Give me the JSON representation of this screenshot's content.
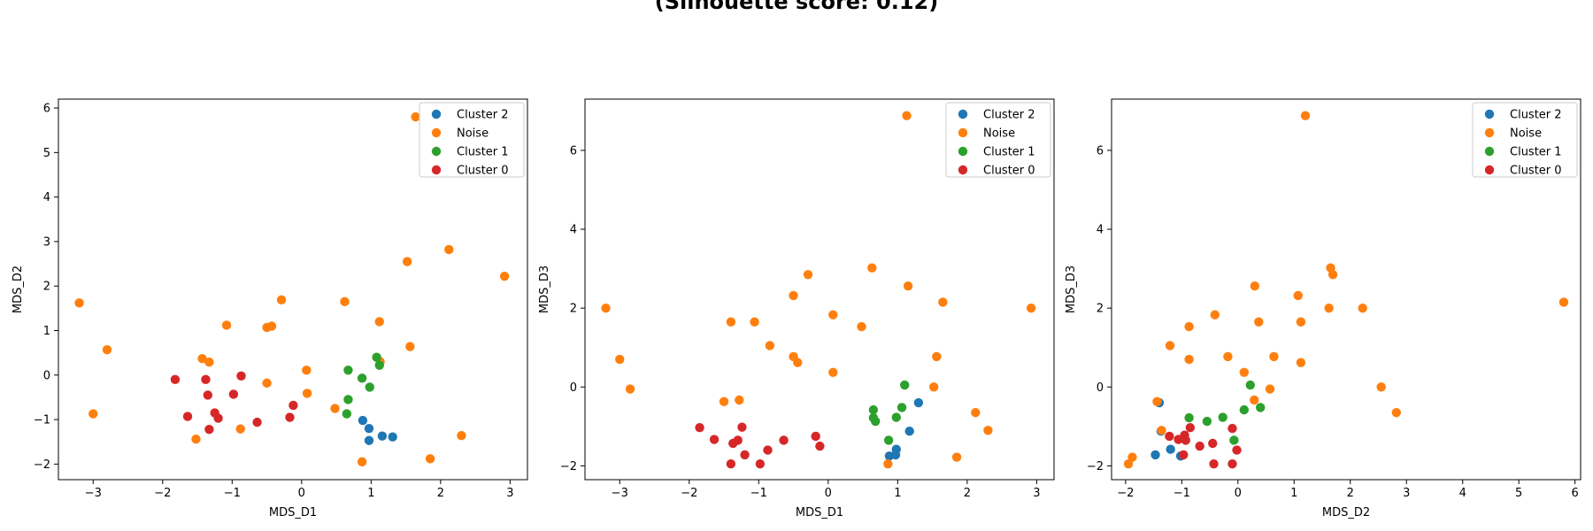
{
  "title": "(Silhouette score: 0.12)",
  "colors": {
    "Cluster 2": "#1f77b4",
    "Noise": "#ff7f0e",
    "Cluster 1": "#2ca02c",
    "Cluster 0": "#d62728"
  },
  "chart_data": [
    {
      "type": "scatter",
      "xlabel": "MDS_D1",
      "ylabel": "MDS_D2",
      "xlim": [
        -3.5,
        3.25
      ],
      "ylim": [
        -2.35,
        6.2
      ],
      "xticks": [
        -3,
        -2,
        -1,
        0,
        1,
        2,
        3
      ],
      "yticks": [
        -2,
        -1,
        0,
        1,
        2,
        3,
        4,
        5,
        6
      ],
      "legend": "top-right",
      "series": [
        {
          "name": "Cluster 2",
          "points": [
            [
              0.88,
              -1.02
            ],
            [
              0.97,
              -1.2
            ],
            [
              0.97,
              -1.47
            ],
            [
              1.16,
              -1.37
            ],
            [
              1.31,
              -1.39
            ]
          ]
        },
        {
          "name": "Noise",
          "points": [
            [
              -3.2,
              1.62
            ],
            [
              -3.0,
              -0.87
            ],
            [
              -2.8,
              0.57
            ],
            [
              -1.43,
              0.37
            ],
            [
              -1.33,
              0.29
            ],
            [
              -1.08,
              1.12
            ],
            [
              -0.88,
              -1.21
            ],
            [
              -0.5,
              1.07
            ],
            [
              -0.43,
              1.1
            ],
            [
              -0.29,
              1.69
            ],
            [
              -0.5,
              -0.18
            ],
            [
              0.07,
              0.11
            ],
            [
              0.08,
              -0.41
            ],
            [
              0.48,
              -0.75
            ],
            [
              0.62,
              1.65
            ],
            [
              1.13,
              0.3
            ],
            [
              1.12,
              1.2
            ],
            [
              1.52,
              2.55
            ],
            [
              1.56,
              0.64
            ],
            [
              1.64,
              5.8
            ],
            [
              1.85,
              -1.88
            ],
            [
              2.12,
              2.82
            ],
            [
              2.3,
              -1.36
            ],
            [
              2.92,
              2.22
            ],
            [
              -1.52,
              -1.44
            ],
            [
              0.87,
              -1.95
            ]
          ]
        },
        {
          "name": "Cluster 1",
          "points": [
            [
              0.67,
              0.11
            ],
            [
              0.67,
              -0.55
            ],
            [
              0.65,
              -0.87
            ],
            [
              0.87,
              -0.07
            ],
            [
              0.98,
              -0.27
            ],
            [
              1.08,
              0.4
            ],
            [
              1.12,
              0.22
            ]
          ]
        },
        {
          "name": "Cluster 0",
          "points": [
            [
              -1.82,
              -0.1
            ],
            [
              -1.64,
              -0.93
            ],
            [
              -1.38,
              -0.1
            ],
            [
              -1.35,
              -0.45
            ],
            [
              -1.33,
              -1.22
            ],
            [
              -1.25,
              -0.85
            ],
            [
              -1.2,
              -0.97
            ],
            [
              -0.98,
              -0.43
            ],
            [
              -0.87,
              -0.02
            ],
            [
              -0.64,
              -1.06
            ],
            [
              -0.17,
              -0.95
            ],
            [
              -0.12,
              -0.68
            ]
          ]
        }
      ]
    },
    {
      "type": "scatter",
      "xlabel": "MDS_D1",
      "ylabel": "MDS_D3",
      "xlim": [
        -3.5,
        3.25
      ],
      "ylim": [
        -2.35,
        7.3
      ],
      "xticks": [
        -3,
        -2,
        -1,
        0,
        1,
        2,
        3
      ],
      "yticks": [
        -2,
        0,
        2,
        4,
        6
      ],
      "legend": "top-right",
      "series": [
        {
          "name": "Cluster 2",
          "points": [
            [
              0.88,
              -1.75
            ],
            [
              0.97,
              -1.72
            ],
            [
              0.98,
              -1.58
            ],
            [
              1.17,
              -1.12
            ],
            [
              1.3,
              -0.4
            ]
          ]
        },
        {
          "name": "Noise",
          "points": [
            [
              -3.2,
              2.0
            ],
            [
              -3.0,
              0.7
            ],
            [
              -2.85,
              -0.05
            ],
            [
              -1.5,
              -0.37
            ],
            [
              -1.4,
              1.65
            ],
            [
              -1.28,
              -0.33
            ],
            [
              -1.06,
              1.65
            ],
            [
              -0.84,
              1.05
            ],
            [
              -0.5,
              2.32
            ],
            [
              -0.5,
              0.77
            ],
            [
              -0.44,
              0.62
            ],
            [
              -0.29,
              2.85
            ],
            [
              0.07,
              1.83
            ],
            [
              0.07,
              0.37
            ],
            [
              0.48,
              1.53
            ],
            [
              0.63,
              3.02
            ],
            [
              0.86,
              -1.95
            ],
            [
              1.13,
              6.88
            ],
            [
              1.15,
              2.56
            ],
            [
              1.52,
              0.0
            ],
            [
              1.56,
              0.77
            ],
            [
              1.65,
              2.15
            ],
            [
              1.85,
              -1.78
            ],
            [
              2.12,
              -0.65
            ],
            [
              2.3,
              -1.1
            ],
            [
              2.92,
              2.0
            ]
          ]
        },
        {
          "name": "Cluster 1",
          "points": [
            [
              0.65,
              -0.58
            ],
            [
              0.65,
              -0.78
            ],
            [
              0.68,
              -0.87
            ],
            [
              0.87,
              -1.35
            ],
            [
              0.98,
              -0.77
            ],
            [
              1.06,
              -0.52
            ],
            [
              1.1,
              0.05
            ]
          ]
        },
        {
          "name": "Cluster 0",
          "points": [
            [
              -1.85,
              -1.03
            ],
            [
              -1.64,
              -1.33
            ],
            [
              -1.4,
              -1.95
            ],
            [
              -1.37,
              -1.43
            ],
            [
              -1.3,
              -1.35
            ],
            [
              -1.24,
              -1.02
            ],
            [
              -1.2,
              -1.72
            ],
            [
              -0.98,
              -1.95
            ],
            [
              -0.87,
              -1.6
            ],
            [
              -0.64,
              -1.35
            ],
            [
              -0.18,
              -1.25
            ],
            [
              -0.12,
              -1.5
            ]
          ]
        }
      ]
    },
    {
      "type": "scatter",
      "xlabel": "MDS_D2",
      "ylabel": "MDS_D3",
      "xlim": [
        -2.25,
        6.1
      ],
      "ylim": [
        -2.35,
        7.3
      ],
      "xticks": [
        -2,
        -1,
        0,
        1,
        2,
        3,
        4,
        5,
        6
      ],
      "yticks": [
        -2,
        0,
        2,
        4,
        6
      ],
      "legend": "top-right",
      "series": [
        {
          "name": "Cluster 2",
          "points": [
            [
              -1.47,
              -1.72
            ],
            [
              -1.4,
              -0.4
            ],
            [
              -1.2,
              -1.58
            ],
            [
              -1.02,
              -1.75
            ],
            [
              -1.37,
              -1.12
            ]
          ]
        },
        {
          "name": "Noise",
          "points": [
            [
              -1.95,
              -1.95
            ],
            [
              -1.88,
              -1.78
            ],
            [
              -1.44,
              -0.37
            ],
            [
              -1.36,
              -1.1
            ],
            [
              -1.21,
              1.05
            ],
            [
              -0.87,
              0.7
            ],
            [
              -0.87,
              1.53
            ],
            [
              -0.41,
              1.83
            ],
            [
              -0.18,
              0.77
            ],
            [
              0.11,
              0.37
            ],
            [
              0.29,
              -0.33
            ],
            [
              0.3,
              2.56
            ],
            [
              0.37,
              1.65
            ],
            [
              0.57,
              -0.05
            ],
            [
              0.64,
              0.77
            ],
            [
              1.07,
              2.32
            ],
            [
              1.12,
              0.62
            ],
            [
              1.2,
              6.88
            ],
            [
              1.12,
              1.65
            ],
            [
              1.62,
              2.0
            ],
            [
              1.65,
              3.02
            ],
            [
              1.69,
              2.85
            ],
            [
              2.22,
              2.0
            ],
            [
              2.55,
              0.0
            ],
            [
              2.82,
              -0.65
            ],
            [
              5.8,
              2.15
            ]
          ]
        },
        {
          "name": "Cluster 1",
          "points": [
            [
              -0.87,
              -0.78
            ],
            [
              -0.55,
              -0.87
            ],
            [
              -0.27,
              -0.77
            ],
            [
              -0.07,
              -1.35
            ],
            [
              0.11,
              -0.58
            ],
            [
              0.22,
              0.05
            ],
            [
              0.4,
              -0.52
            ]
          ]
        },
        {
          "name": "Cluster 0",
          "points": [
            [
              -1.22,
              -1.25
            ],
            [
              -1.06,
              -1.33
            ],
            [
              -0.97,
              -1.72
            ],
            [
              -0.95,
              -1.22
            ],
            [
              -0.93,
              -1.35
            ],
            [
              -0.85,
              -1.03
            ],
            [
              -0.68,
              -1.5
            ],
            [
              -0.45,
              -1.43
            ],
            [
              -0.43,
              -1.95
            ],
            [
              -0.1,
              -1.05
            ],
            [
              -0.1,
              -1.95
            ],
            [
              -0.02,
              -1.6
            ]
          ]
        }
      ]
    }
  ]
}
